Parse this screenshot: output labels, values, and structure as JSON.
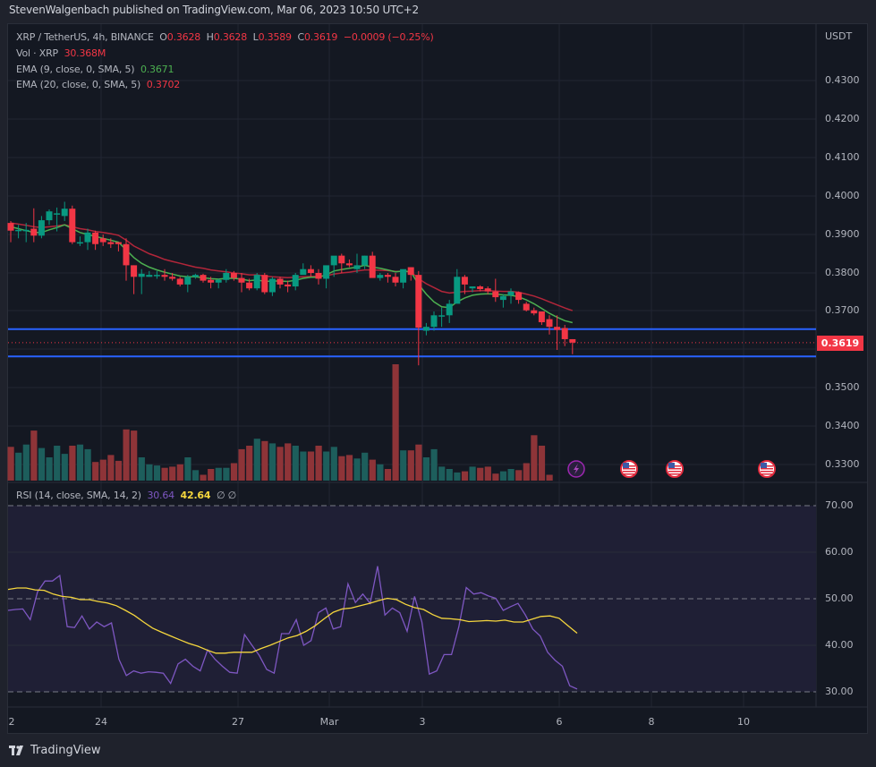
{
  "header": {
    "published": "StevenWalgenbach published on TradingView.com, Mar 06, 2023 10:50 UTC+2"
  },
  "legend": {
    "symbol": "XRP / TetherUS, 4h, BINANCE",
    "o_label": "O",
    "o": "0.3628",
    "h_label": "H",
    "h": "0.3628",
    "l_label": "L",
    "l": "0.3589",
    "c_label": "C",
    "c": "0.3619",
    "change": "−0.0009 (−0.25%)",
    "vol_label": "Vol · XRP",
    "vol": "30.368M",
    "ema9_label": "EMA (9, close, 0, SMA, 5)",
    "ema9": "0.3671",
    "ema20_label": "EMA (20, close, 0, SMA, 5)",
    "ema20": "0.3702",
    "rsi_label": "RSI (14, close, SMA, 14, 2)",
    "rsi": "30.64",
    "rsi_sma": "42.64",
    "rsi_na1": "∅",
    "rsi_na2": "∅"
  },
  "price_axis": {
    "currency": "USDT",
    "ticks": [
      "0.4300",
      "0.4200",
      "0.4100",
      "0.4000",
      "0.3900",
      "0.3800",
      "0.3700",
      "0.3500",
      "0.3400",
      "0.3300"
    ],
    "last_price": "0.3619"
  },
  "rsi_axis": {
    "ticks": [
      "70.00",
      "60.00",
      "50.00",
      "40.00",
      "30.00"
    ]
  },
  "time_axis": {
    "ticks": [
      "2",
      "24",
      "27",
      "Mar",
      "3",
      "6",
      "8",
      "10"
    ]
  },
  "events": [
    "lightning-event",
    "us-flag-event",
    "us-flag-event",
    "us-flag-event"
  ],
  "footer": {
    "brand": "TradingView"
  },
  "colors": {
    "up": "#089981",
    "down": "#f23645",
    "ema9": "#4caf50",
    "ema20": "#b2263a",
    "hline": "#2962ff",
    "rsi": "#7e57c2",
    "rsi_sma": "#f5d63d",
    "rsi_bg": "#1f1f35"
  },
  "chart_data": [
    {
      "type": "candlestick",
      "title": "XRP / TetherUS, 4h, BINANCE",
      "ylabel": "USDT",
      "ylim": [
        0.325,
        0.4355
      ],
      "x_ticks": [
        "2",
        "24",
        "27",
        "Mar",
        "3",
        "6",
        "8",
        "10"
      ],
      "horizontal_lines": [
        0.3654,
        0.3583
      ],
      "last_price": 0.3619,
      "candles": [
        [
          0.393,
          0.3935,
          0.388,
          0.391
        ],
        [
          0.391,
          0.3925,
          0.389,
          0.3912
        ],
        [
          0.3912,
          0.393,
          0.388,
          0.3912
        ],
        [
          0.3915,
          0.3968,
          0.388,
          0.3897
        ],
        [
          0.3897,
          0.3948,
          0.389,
          0.3937
        ],
        [
          0.3937,
          0.3965,
          0.3925,
          0.396
        ],
        [
          0.3955,
          0.397,
          0.3908,
          0.3955
        ],
        [
          0.3948,
          0.3985,
          0.3935,
          0.3967
        ],
        [
          0.3967,
          0.3975,
          0.3875,
          0.388
        ],
        [
          0.388,
          0.3895,
          0.387,
          0.388
        ],
        [
          0.388,
          0.3915,
          0.386,
          0.3905
        ],
        [
          0.3905,
          0.391,
          0.386,
          0.3875
        ],
        [
          0.389,
          0.39,
          0.387,
          0.388
        ],
        [
          0.388,
          0.389,
          0.3865,
          0.3875
        ],
        [
          0.388,
          0.388,
          0.3856,
          0.3875
        ],
        [
          0.3875,
          0.389,
          0.378,
          0.382
        ],
        [
          0.382,
          0.382,
          0.3745,
          0.379
        ],
        [
          0.379,
          0.381,
          0.3745,
          0.3798
        ],
        [
          0.379,
          0.3805,
          0.379,
          0.3795
        ],
        [
          0.3795,
          0.3805,
          0.3785,
          0.3795
        ],
        [
          0.3795,
          0.381,
          0.378,
          0.379
        ],
        [
          0.379,
          0.38,
          0.378,
          0.3785
        ],
        [
          0.3785,
          0.379,
          0.3765,
          0.377
        ],
        [
          0.377,
          0.3795,
          0.375,
          0.379
        ],
        [
          0.379,
          0.3798,
          0.3785,
          0.3795
        ],
        [
          0.3795,
          0.3798,
          0.3775,
          0.378
        ],
        [
          0.3782,
          0.379,
          0.376,
          0.3775
        ],
        [
          0.3775,
          0.3785,
          0.376,
          0.3782
        ],
        [
          0.3782,
          0.381,
          0.3775,
          0.38
        ],
        [
          0.38,
          0.3805,
          0.378,
          0.3787
        ],
        [
          0.3787,
          0.38,
          0.375,
          0.3775
        ],
        [
          0.3775,
          0.3785,
          0.3755,
          0.376
        ],
        [
          0.376,
          0.38,
          0.3755,
          0.3795
        ],
        [
          0.3795,
          0.38,
          0.3745,
          0.375
        ],
        [
          0.375,
          0.379,
          0.374,
          0.3785
        ],
        [
          0.3785,
          0.379,
          0.376,
          0.377
        ],
        [
          0.377,
          0.378,
          0.375,
          0.3765
        ],
        [
          0.3765,
          0.38,
          0.3755,
          0.3795
        ],
        [
          0.3795,
          0.3825,
          0.38,
          0.381
        ],
        [
          0.381,
          0.382,
          0.379,
          0.38
        ],
        [
          0.38,
          0.381,
          0.377,
          0.3785
        ],
        [
          0.3785,
          0.381,
          0.376,
          0.382
        ],
        [
          0.382,
          0.384,
          0.379,
          0.3845
        ],
        [
          0.3845,
          0.385,
          0.38,
          0.3825
        ],
        [
          0.3825,
          0.3835,
          0.3815,
          0.382
        ],
        [
          0.381,
          0.385,
          0.38,
          0.382
        ],
        [
          0.382,
          0.3845,
          0.381,
          0.3845
        ],
        [
          0.3845,
          0.3855,
          0.379,
          0.3787
        ],
        [
          0.3787,
          0.38,
          0.378,
          0.3795
        ],
        [
          0.3795,
          0.38,
          0.3775,
          0.379
        ],
        [
          0.379,
          0.38,
          0.3765,
          0.3775
        ],
        [
          0.3775,
          0.379,
          0.376,
          0.381
        ],
        [
          0.3815,
          0.3815,
          0.378,
          0.3795
        ],
        [
          0.3795,
          0.3805,
          0.356,
          0.3658
        ],
        [
          0.365,
          0.367,
          0.3638,
          0.366
        ],
        [
          0.366,
          0.37,
          0.365,
          0.369
        ],
        [
          0.369,
          0.371,
          0.366,
          0.369
        ],
        [
          0.369,
          0.373,
          0.367,
          0.372
        ],
        [
          0.372,
          0.381,
          0.3725,
          0.379
        ],
        [
          0.379,
          0.3795,
          0.3745,
          0.377
        ],
        [
          0.376,
          0.3765,
          0.375,
          0.3765
        ],
        [
          0.3765,
          0.3768,
          0.3752,
          0.3758
        ],
        [
          0.376,
          0.3765,
          0.3745,
          0.3752
        ],
        [
          0.3752,
          0.3785,
          0.3725,
          0.3737
        ],
        [
          0.373,
          0.3745,
          0.371,
          0.374
        ],
        [
          0.3742,
          0.376,
          0.372,
          0.3752
        ],
        [
          0.375,
          0.3752,
          0.372,
          0.373
        ],
        [
          0.372,
          0.3725,
          0.37,
          0.3703
        ],
        [
          0.3703,
          0.371,
          0.369,
          0.3695
        ],
        [
          0.37,
          0.37,
          0.3665,
          0.3672
        ],
        [
          0.368,
          0.369,
          0.364,
          0.366
        ],
        [
          0.366,
          0.369,
          0.36,
          0.3652
        ],
        [
          0.3657,
          0.3665,
          0.361,
          0.3628
        ],
        [
          0.3628,
          0.3628,
          0.3589,
          0.3619
        ]
      ],
      "ema9": [
        0.392,
        0.3915,
        0.391,
        0.3905,
        0.3905,
        0.3912,
        0.3918,
        0.3925,
        0.3915,
        0.3905,
        0.39,
        0.3895,
        0.389,
        0.3885,
        0.388,
        0.386,
        0.384,
        0.3825,
        0.3815,
        0.3808,
        0.3802,
        0.3797,
        0.3792,
        0.379,
        0.379,
        0.3788,
        0.3785,
        0.3784,
        0.3786,
        0.3786,
        0.3784,
        0.378,
        0.3782,
        0.3778,
        0.3779,
        0.3779,
        0.3778,
        0.3781,
        0.3786,
        0.3789,
        0.3789,
        0.3795,
        0.3805,
        0.3809,
        0.3812,
        0.3815,
        0.382,
        0.3815,
        0.3812,
        0.3808,
        0.3803,
        0.3805,
        0.3803,
        0.377,
        0.3745,
        0.3725,
        0.3712,
        0.371,
        0.3725,
        0.3735,
        0.3742,
        0.3745,
        0.3746,
        0.3745,
        0.3743,
        0.3742,
        0.3738,
        0.373,
        0.372,
        0.3708,
        0.3695,
        0.3685,
        0.3676,
        0.3671
      ],
      "ema20": [
        0.393,
        0.3927,
        0.3924,
        0.392,
        0.3918,
        0.392,
        0.3922,
        0.3925,
        0.392,
        0.3915,
        0.3912,
        0.3908,
        0.3905,
        0.3902,
        0.3898,
        0.3885,
        0.387,
        0.386,
        0.385,
        0.3843,
        0.3835,
        0.383,
        0.3825,
        0.382,
        0.3815,
        0.3812,
        0.3808,
        0.3805,
        0.3803,
        0.38,
        0.3798,
        0.3795,
        0.3795,
        0.3792,
        0.379,
        0.3789,
        0.3788,
        0.3789,
        0.379,
        0.3791,
        0.3791,
        0.3793,
        0.3797,
        0.38,
        0.3802,
        0.3805,
        0.3808,
        0.3808,
        0.3807,
        0.3806,
        0.3804,
        0.3804,
        0.3803,
        0.3785,
        0.3772,
        0.3762,
        0.3752,
        0.3748,
        0.375,
        0.3752,
        0.3753,
        0.3754,
        0.3754,
        0.3753,
        0.3752,
        0.3752,
        0.375,
        0.3745,
        0.374,
        0.3733,
        0.3725,
        0.3717,
        0.3709,
        0.3702
      ]
    },
    {
      "type": "bar",
      "title": "Vol · XRP",
      "last_value": "30.368M",
      "relative_heights": [
        0.29,
        0.24,
        0.31,
        0.43,
        0.28,
        0.2,
        0.3,
        0.23,
        0.3,
        0.31,
        0.27,
        0.16,
        0.18,
        0.22,
        0.17,
        0.44,
        0.43,
        0.2,
        0.14,
        0.13,
        0.11,
        0.12,
        0.14,
        0.2,
        0.09,
        0.05,
        0.1,
        0.11,
        0.11,
        0.15,
        0.27,
        0.3,
        0.36,
        0.34,
        0.32,
        0.29,
        0.32,
        0.3,
        0.25,
        0.25,
        0.3,
        0.25,
        0.29,
        0.21,
        0.22,
        0.19,
        0.24,
        0.18,
        0.14,
        0.1,
        1.0,
        0.26,
        0.26,
        0.31,
        0.2,
        0.27,
        0.12,
        0.1,
        0.07,
        0.08,
        0.12,
        0.11,
        0.12,
        0.06,
        0.08,
        0.1,
        0.09,
        0.15,
        0.39,
        0.3,
        0.05
      ],
      "down_color": "#8e3438",
      "up_color": "#1d5e5c"
    },
    {
      "type": "line",
      "title": "RSI (14, close, SMA, 14, 2)",
      "ylim": [
        27,
        72
      ],
      "bands": [
        70,
        50,
        30
      ],
      "series": [
        {
          "name": "RSI",
          "color": "#7e57c2",
          "last": 30.64,
          "values": [
            47.5,
            47.7,
            47.8,
            45.5,
            51.5,
            53.8,
            53.8,
            55.0,
            44.0,
            43.8,
            46.3,
            43.5,
            45.0,
            44.0,
            44.8,
            37.0,
            33.5,
            34.5,
            34.0,
            34.3,
            34.2,
            34.0,
            31.8,
            36.0,
            37.0,
            35.5,
            34.5,
            39.0,
            37.0,
            35.5,
            34.2,
            34.0,
            42.3,
            40.0,
            37.8,
            34.8,
            34.0,
            42.5,
            42.5,
            45.5,
            40.0,
            41.0,
            47.0,
            48.0,
            43.5,
            44.0,
            53.2,
            49.2,
            51.0,
            49.0,
            57.0,
            46.5,
            48.0,
            47.0,
            43.0,
            50.5,
            45.0,
            33.8,
            34.5,
            38.0,
            38.0,
            44.0,
            52.4,
            51.0,
            51.3,
            50.6,
            50.1,
            47.5,
            48.3,
            49.0,
            46.5,
            43.5,
            42.0,
            38.5,
            36.8,
            35.5,
            31.3,
            30.6
          ]
        },
        {
          "name": "RSI-SMA",
          "color": "#f5d63d",
          "last": 42.64,
          "values": [
            52.0,
            52.3,
            52.3,
            51.9,
            51.8,
            51.0,
            50.5,
            50.3,
            49.8,
            49.8,
            49.4,
            49.1,
            48.5,
            47.5,
            46.4,
            45.0,
            43.7,
            42.8,
            42.0,
            41.2,
            40.4,
            39.8,
            39.0,
            38.3,
            38.3,
            38.5,
            38.5,
            38.5,
            39.3,
            40.0,
            40.8,
            41.6,
            42.1,
            43.0,
            44.2,
            45.7,
            47.1,
            47.8,
            48.0,
            48.5,
            49.0,
            49.6,
            50.1,
            49.8,
            48.8,
            48.1,
            47.7,
            46.6,
            45.8,
            45.7,
            45.5,
            45.1,
            45.2,
            45.3,
            45.2,
            45.4,
            45.0,
            45.0,
            45.6,
            46.2,
            46.3,
            45.8,
            44.2,
            42.6
          ]
        }
      ]
    }
  ]
}
